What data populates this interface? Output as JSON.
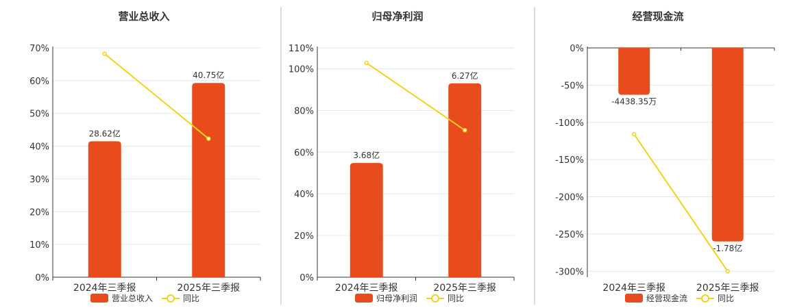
{
  "colors": {
    "bar": "#E84C1C",
    "line": "#F2D21A",
    "marker_fill": "#FFFFFF",
    "grid": "#E3E6EF",
    "axis": "#333333",
    "text": "#333333",
    "divider": "#BBBBBB"
  },
  "chart_data": [
    {
      "type": "bar",
      "title": "营业总收入",
      "categories": [
        "2024年三季报",
        "2025年三季报"
      ],
      "series": [
        {
          "name": "营业总收入",
          "type": "bar",
          "values": [
            41.5,
            59.3
          ],
          "labels": [
            "28.62亿",
            "40.75亿"
          ]
        },
        {
          "name": "同比",
          "type": "line",
          "values": [
            68.2,
            42.3
          ]
        }
      ],
      "yticks": [
        0,
        10,
        20,
        30,
        40,
        50,
        60,
        70
      ],
      "ytick_labels": [
        "0%",
        "10%",
        "20%",
        "30%",
        "40%",
        "50%",
        "60%",
        "70%"
      ],
      "ylim": [
        0,
        70
      ],
      "grid": true,
      "legend": "bottom"
    },
    {
      "type": "bar",
      "title": "归母净利润",
      "categories": [
        "2024年三季报",
        "2025年三季报"
      ],
      "series": [
        {
          "name": "归母净利润",
          "type": "bar",
          "values": [
            54.8,
            93.0
          ],
          "labels": [
            "3.68亿",
            "6.27亿"
          ]
        },
        {
          "name": "同比",
          "type": "line",
          "values": [
            102.8,
            70.5
          ]
        }
      ],
      "yticks": [
        0,
        20,
        40,
        60,
        80,
        100,
        110
      ],
      "ytick_labels": [
        "0%",
        "20%",
        "40%",
        "60%",
        "80%",
        "100%",
        "110%"
      ],
      "ylim": [
        0,
        110
      ],
      "grid": true,
      "legend": "bottom"
    },
    {
      "type": "bar",
      "title": "经营现金流",
      "categories": [
        "2024年三季报",
        "2025年三季报"
      ],
      "series": [
        {
          "name": "经营现金流",
          "type": "bar",
          "values": [
            -63,
            -260
          ],
          "labels": [
            "-4438.35万",
            "-1.78亿"
          ]
        },
        {
          "name": "同比",
          "type": "line",
          "values": [
            -116,
            -300
          ]
        }
      ],
      "yticks": [
        0,
        -50,
        -100,
        -150,
        -200,
        -250,
        -300
      ],
      "ytick_labels": [
        "0%",
        "-50%",
        "-100%",
        "-150%",
        "-200%",
        "-250%",
        "-300%"
      ],
      "ylim": [
        -308,
        0
      ],
      "grid": true,
      "legend": "bottom"
    }
  ]
}
